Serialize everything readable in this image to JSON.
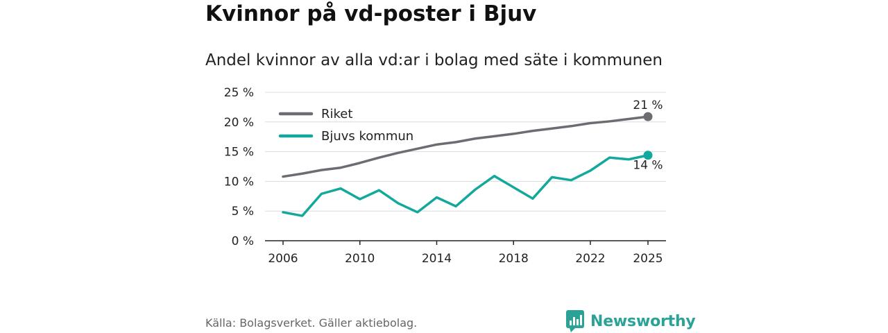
{
  "title": "Kvinnor på vd-poster i Bjuv",
  "subtitle": "Andel kvinnor av alla vd:ar i bolag med säte i kommunen",
  "source": "Källa: Bolagsverket. Gäller aktiebolag.",
  "brand": "Newsworthy",
  "colors": {
    "riket": "#6e6c73",
    "bjuv": "#13a89c",
    "grid": "#dcdcdc",
    "axis": "#222222",
    "brand": "#2aa396"
  },
  "chart_data": {
    "type": "line",
    "title": "Kvinnor på vd-poster i Bjuv",
    "subtitle": "Andel kvinnor av alla vd:ar i bolag med säte i kommunen",
    "x": [
      2006,
      2007,
      2008,
      2009,
      2010,
      2011,
      2012,
      2013,
      2014,
      2015,
      2016,
      2017,
      2018,
      2019,
      2020,
      2021,
      2022,
      2023,
      2024,
      2025
    ],
    "series": [
      {
        "name": "Riket",
        "values": [
          10.8,
          11.3,
          11.9,
          12.3,
          13.1,
          14.0,
          14.8,
          15.5,
          16.2,
          16.6,
          17.2,
          17.6,
          18.0,
          18.5,
          18.9,
          19.3,
          19.8,
          20.1,
          20.5,
          20.9
        ]
      },
      {
        "name": "Bjuvs kommun",
        "values": [
          4.8,
          4.2,
          7.9,
          8.8,
          7.0,
          8.5,
          6.3,
          4.8,
          7.3,
          5.8,
          8.6,
          10.9,
          9.0,
          7.1,
          10.7,
          10.2,
          11.8,
          14.0,
          13.7,
          14.4
        ]
      }
    ],
    "end_labels": [
      "21 %",
      "14 %"
    ],
    "x_ticks": [
      "2006",
      "2010",
      "2014",
      "2018",
      "2022",
      "2025"
    ],
    "y_ticks": [
      "0 %",
      "5 %",
      "10 %",
      "15 %",
      "20 %",
      "25 %"
    ],
    "ylim": [
      0,
      25
    ],
    "xlabel": "",
    "ylabel": "",
    "legend": "top-left",
    "grid": true
  }
}
